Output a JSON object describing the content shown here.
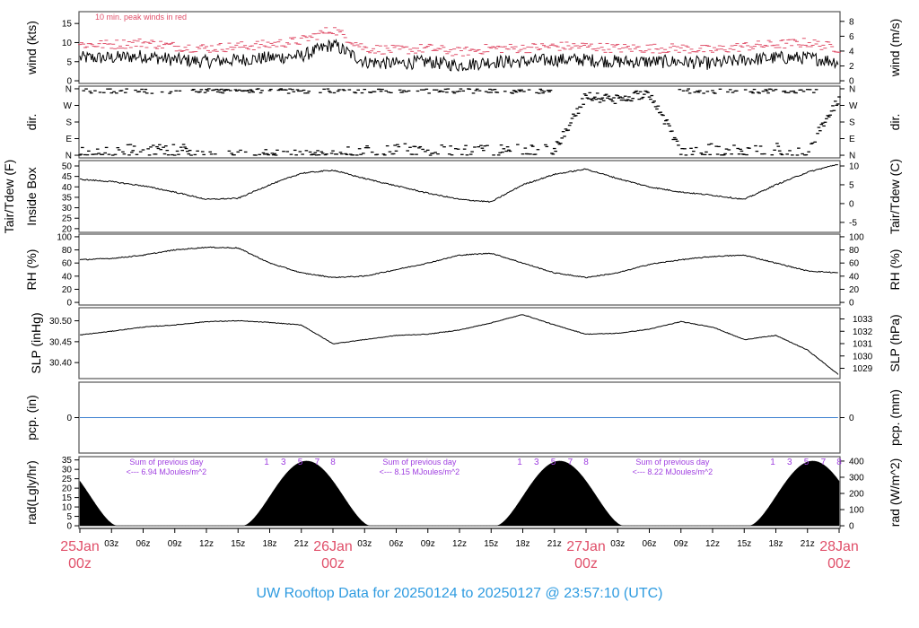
{
  "chart_data": {
    "type": "line",
    "title": "UW Rooftop Data for 20250124  to  20250127 @ 23:57:10  (UTC)",
    "x_axis": {
      "hours_step": 3,
      "hour_labels": [
        "03z",
        "06z",
        "09z",
        "12z",
        "15z",
        "18z",
        "21z"
      ],
      "day_labels": [
        {
          "day": "25Jan",
          "hour": "00z"
        },
        {
          "day": "26Jan",
          "hour": "00z"
        },
        {
          "day": "27Jan",
          "hour": "00z"
        },
        {
          "day": "28Jan",
          "hour": "00z"
        }
      ],
      "range_hours": [
        0,
        72
      ]
    },
    "sample_hours": [
      0,
      3,
      6,
      9,
      12,
      15,
      18,
      21,
      24,
      27,
      30,
      33,
      36,
      39,
      42,
      45,
      48,
      51,
      54,
      57,
      60,
      63,
      66,
      69,
      72
    ],
    "panels": [
      {
        "id": "wind",
        "ylabel_left": "wind (kts)",
        "ylabel_right": "wind (m/s)",
        "ylim": [
          0,
          17.4
        ],
        "left_ticks": [
          0,
          5,
          10,
          15
        ],
        "right_ticks": [
          0,
          2,
          4,
          6,
          8
        ],
        "annotation": "10 min. peak winds in red",
        "series": [
          {
            "name": "wind",
            "color": "#000000",
            "values": [
              6,
              6,
              6.5,
              5.5,
              5,
              5.5,
              6,
              6.5,
              9.5,
              5,
              4.5,
              5,
              4,
              5,
              5,
              5.5,
              5.5,
              5,
              5,
              5,
              4.5,
              5.5,
              6,
              6,
              5
            ]
          },
          {
            "name": "peak",
            "color": "#e0506a",
            "values": [
              9,
              9,
              9.5,
              8.5,
              8,
              8.5,
              9,
              10,
              13,
              8,
              7.5,
              8,
              7,
              8,
              8,
              8.5,
              8.5,
              8,
              8,
              8,
              7.5,
              8.5,
              9,
              9.5,
              8
            ]
          }
        ]
      },
      {
        "id": "dir",
        "ylabel_left": "dir.",
        "ylabel_right": "dir.",
        "ylim": [
          0,
          360
        ],
        "tick_values": [
          0,
          90,
          180,
          270,
          360
        ],
        "tick_labels": [
          "N",
          "E",
          "S",
          "W",
          "N"
        ],
        "series": [
          {
            "name": "direction",
            "color": "#000000",
            "values": [
              20,
              30,
              40,
              35,
              30,
              10,
              20,
              15,
              10,
              30,
              40,
              30,
              40,
              30,
              40,
              30,
              320,
              300,
              340,
              30,
              40,
              30,
              40,
              30,
              300
            ]
          }
        ]
      },
      {
        "id": "temp",
        "ylabel_left": "Tair/Tdew (F)",
        "ylabel_left_2": "Inside Box",
        "ylabel_right": "Tair/Tdew (C)",
        "ylim": [
          19.5,
          51.3
        ],
        "left_ticks": [
          20,
          25,
          30,
          35,
          40,
          45,
          50
        ],
        "right_ticks": [
          -5,
          0,
          5,
          10
        ],
        "series": [
          {
            "name": "Tair",
            "color": "#000000",
            "values": [
              43.6,
              42.5,
              40.5,
              37.5,
              34,
              34.5,
              41,
              46.5,
              48,
              44,
              40.5,
              37,
              34,
              32.8,
              41,
              46,
              48.5,
              44,
              40,
              37.5,
              36,
              34,
              41,
              47,
              51
            ]
          }
        ]
      },
      {
        "id": "rh",
        "ylabel_left": "RH (%)",
        "ylabel_right": "RH (%)",
        "ylim": [
          0,
          100
        ],
        "left_ticks": [
          0,
          20,
          40,
          60,
          80,
          100
        ],
        "right_ticks": [
          0,
          20,
          40,
          60,
          80,
          100
        ],
        "series": [
          {
            "name": "RH",
            "color": "#000000",
            "values": [
              65,
              67,
              72,
              80,
              84,
              83,
              60,
              45,
              38,
              40,
              50,
              60,
              72,
              75,
              60,
              45,
              38,
              45,
              58,
              65,
              70,
              72,
              60,
              48,
              45
            ]
          }
        ]
      },
      {
        "id": "slp",
        "ylabel_left": "SLP (inHg)",
        "ylabel_right": "SLP (hPa)",
        "ylim": [
          30.368,
          30.525
        ],
        "left_ticks": [
          "30.40",
          "30.45",
          "30.50"
        ],
        "right_ticks": [
          1029,
          1030,
          1031,
          1032,
          1033
        ],
        "series": [
          {
            "name": "SLP",
            "color": "#000000",
            "values": [
              30.466,
              30.475,
              30.485,
              30.49,
              30.498,
              30.5,
              30.496,
              30.49,
              30.445,
              30.455,
              30.465,
              30.468,
              30.478,
              30.495,
              30.515,
              30.49,
              30.468,
              30.47,
              30.48,
              30.498,
              30.485,
              30.455,
              30.465,
              30.43,
              30.37
            ]
          }
        ]
      },
      {
        "id": "pcp",
        "ylabel_left": "pcp. (in)",
        "ylabel_right": "pcp. (mm)",
        "ylim": [
          -1,
          1
        ],
        "left_ticks": [
          0
        ],
        "right_ticks": [
          0
        ],
        "series": [
          {
            "name": "precip",
            "color": "#3b7fd0",
            "values": [
              0,
              0,
              0,
              0,
              0,
              0,
              0,
              0,
              0,
              0,
              0,
              0,
              0,
              0,
              0,
              0,
              0,
              0,
              0,
              0,
              0,
              0,
              0,
              0,
              0
            ]
          }
        ]
      },
      {
        "id": "rad",
        "ylabel_left": "rad(Lgly/hr)",
        "ylabel_right": "rad (W/m^2)",
        "ylim": [
          0,
          411
        ],
        "left_ticks": [
          0,
          5,
          10,
          15,
          20,
          25,
          30,
          35
        ],
        "right_ticks": [
          0,
          100,
          200,
          300,
          400
        ],
        "daily_peak_wm2": 400,
        "sunrise_hour_utc": 15.5,
        "sunset_hour_utc": 27.5,
        "daily_sums": [
          {
            "line1": "Sum of previous day",
            "line2": "<--- 6.94 MJoules/m^2"
          },
          {
            "line1": "Sum of previous day",
            "line2": "<--- 8.15 MJoules/m^2"
          },
          {
            "line1": "Sum of previous day",
            "line2": "<--- 8.22 MJoules/m^2"
          }
        ],
        "hour_markers": [
          "1",
          "3",
          "5",
          "7",
          "8"
        ]
      }
    ]
  }
}
